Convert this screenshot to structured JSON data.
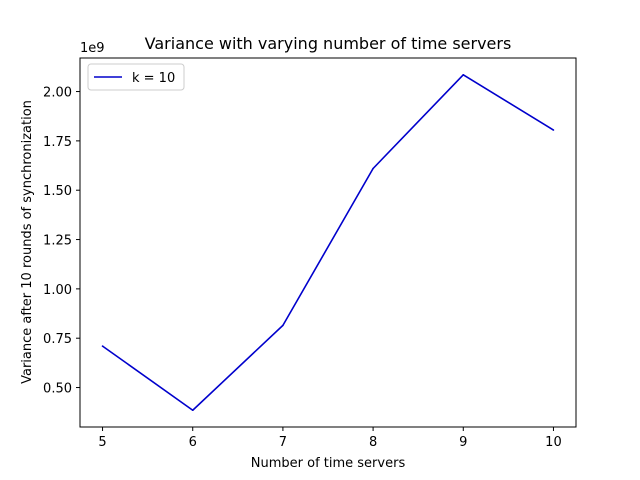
{
  "chart_data": {
    "type": "line",
    "title": "Variance with varying number of time servers",
    "xlabel": "Number of time servers",
    "ylabel": "Variance after 10 rounds of synchronization",
    "y_offset_label": "1e9",
    "x": [
      5,
      6,
      7,
      8,
      9,
      10
    ],
    "series": [
      {
        "name": "k = 10",
        "color": "#0000cc",
        "values": [
          0.71,
          0.385,
          0.815,
          1.61,
          2.085,
          1.805
        ]
      }
    ],
    "xlim": [
      4.75,
      10.25
    ],
    "ylim": [
      0.3,
      2.17
    ],
    "xticks": [
      5,
      6,
      7,
      8,
      9,
      10
    ],
    "yticks": [
      0.5,
      0.75,
      1.0,
      1.25,
      1.5,
      1.75,
      2.0
    ],
    "ytick_labels": [
      "0.50",
      "0.75",
      "1.00",
      "1.25",
      "1.50",
      "1.75",
      "2.00"
    ],
    "legend_position": "upper-left",
    "grid": false
  }
}
